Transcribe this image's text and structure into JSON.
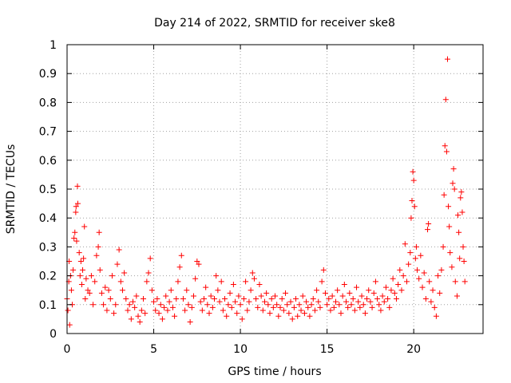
{
  "chart_data": {
    "type": "scatter",
    "title": "Day 214 of 2022, SRMTID for receiver ske8",
    "xlabel": "GPS time / hours",
    "ylabel": "SRMTID / TECUs",
    "xlim": [
      0,
      24
    ],
    "ylim": [
      0,
      1
    ],
    "xticks": [
      0,
      5,
      10,
      15,
      20
    ],
    "yticks": [
      0,
      0.1,
      0.2,
      0.3,
      0.4,
      0.5,
      0.6,
      0.7,
      0.8,
      0.9,
      1
    ],
    "xtick_labels": [
      "0",
      "5",
      "10",
      "15",
      "20"
    ],
    "ytick_labels": [
      "0",
      "0.1",
      "0.2",
      "0.3",
      "0.4",
      "0.5",
      "0.6",
      "0.7",
      "0.8",
      "0.9",
      "1"
    ],
    "grid": true,
    "marker": "plus",
    "color": "#ff0000",
    "series": [
      {
        "name": "SRMTID",
        "points": [
          [
            0.0,
            0.12
          ],
          [
            0.05,
            0.08
          ],
          [
            0.1,
            0.18
          ],
          [
            0.12,
            0.25
          ],
          [
            0.15,
            0.03
          ],
          [
            0.2,
            0.2
          ],
          [
            0.25,
            0.15
          ],
          [
            0.3,
            0.1
          ],
          [
            0.35,
            0.22
          ],
          [
            0.4,
            0.33
          ],
          [
            0.45,
            0.35
          ],
          [
            0.5,
            0.42
          ],
          [
            0.52,
            0.44
          ],
          [
            0.55,
            0.32
          ],
          [
            0.6,
            0.51
          ],
          [
            0.62,
            0.45
          ],
          [
            0.7,
            0.28
          ],
          [
            0.75,
            0.2
          ],
          [
            0.8,
            0.25
          ],
          [
            0.85,
            0.17
          ],
          [
            0.9,
            0.22
          ],
          [
            0.95,
            0.26
          ],
          [
            1.0,
            0.37
          ],
          [
            1.05,
            0.12
          ],
          [
            1.1,
            0.19
          ],
          [
            1.2,
            0.15
          ],
          [
            1.3,
            0.14
          ],
          [
            1.4,
            0.2
          ],
          [
            1.5,
            0.1
          ],
          [
            1.6,
            0.18
          ],
          [
            1.7,
            0.27
          ],
          [
            1.8,
            0.3
          ],
          [
            1.85,
            0.35
          ],
          [
            1.9,
            0.22
          ],
          [
            2.0,
            0.14
          ],
          [
            2.1,
            0.1
          ],
          [
            2.2,
            0.16
          ],
          [
            2.3,
            0.08
          ],
          [
            2.4,
            0.15
          ],
          [
            2.5,
            0.12
          ],
          [
            2.6,
            0.2
          ],
          [
            2.7,
            0.07
          ],
          [
            2.8,
            0.1
          ],
          [
            2.9,
            0.24
          ],
          [
            3.0,
            0.29
          ],
          [
            3.1,
            0.18
          ],
          [
            3.2,
            0.15
          ],
          [
            3.3,
            0.21
          ],
          [
            3.4,
            0.12
          ],
          [
            3.5,
            0.08
          ],
          [
            3.6,
            0.1
          ],
          [
            3.7,
            0.05
          ],
          [
            3.8,
            0.11
          ],
          [
            3.9,
            0.09
          ],
          [
            4.0,
            0.13
          ],
          [
            4.1,
            0.06
          ],
          [
            4.2,
            0.04
          ],
          [
            4.3,
            0.08
          ],
          [
            4.4,
            0.12
          ],
          [
            4.5,
            0.07
          ],
          [
            4.6,
            0.18
          ],
          [
            4.7,
            0.21
          ],
          [
            4.8,
            0.26
          ],
          [
            4.9,
            0.15
          ],
          [
            5.0,
            0.11
          ],
          [
            5.1,
            0.08
          ],
          [
            5.2,
            0.12
          ],
          [
            5.3,
            0.07
          ],
          [
            5.4,
            0.1
          ],
          [
            5.5,
            0.05
          ],
          [
            5.6,
            0.09
          ],
          [
            5.7,
            0.13
          ],
          [
            5.8,
            0.08
          ],
          [
            5.9,
            0.11
          ],
          [
            6.0,
            0.15
          ],
          [
            6.1,
            0.09
          ],
          [
            6.2,
            0.06
          ],
          [
            6.3,
            0.12
          ],
          [
            6.4,
            0.18
          ],
          [
            6.5,
            0.23
          ],
          [
            6.6,
            0.27
          ],
          [
            6.7,
            0.12
          ],
          [
            6.8,
            0.08
          ],
          [
            6.9,
            0.15
          ],
          [
            7.0,
            0.1
          ],
          [
            7.1,
            0.04
          ],
          [
            7.2,
            0.09
          ],
          [
            7.3,
            0.13
          ],
          [
            7.4,
            0.19
          ],
          [
            7.5,
            0.25
          ],
          [
            7.6,
            0.24
          ],
          [
            7.7,
            0.11
          ],
          [
            7.8,
            0.08
          ],
          [
            7.9,
            0.12
          ],
          [
            8.0,
            0.16
          ],
          [
            8.1,
            0.1
          ],
          [
            8.2,
            0.07
          ],
          [
            8.3,
            0.13
          ],
          [
            8.4,
            0.09
          ],
          [
            8.5,
            0.12
          ],
          [
            8.6,
            0.2
          ],
          [
            8.7,
            0.15
          ],
          [
            8.8,
            0.11
          ],
          [
            8.9,
            0.18
          ],
          [
            9.0,
            0.08
          ],
          [
            9.1,
            0.12
          ],
          [
            9.2,
            0.06
          ],
          [
            9.3,
            0.1
          ],
          [
            9.4,
            0.14
          ],
          [
            9.5,
            0.09
          ],
          [
            9.6,
            0.17
          ],
          [
            9.7,
            0.11
          ],
          [
            9.8,
            0.07
          ],
          [
            9.9,
            0.13
          ],
          [
            10.0,
            0.1
          ],
          [
            10.1,
            0.05
          ],
          [
            10.2,
            0.12
          ],
          [
            10.3,
            0.18
          ],
          [
            10.4,
            0.08
          ],
          [
            10.5,
            0.11
          ],
          [
            10.6,
            0.15
          ],
          [
            10.7,
            0.21
          ],
          [
            10.8,
            0.19
          ],
          [
            10.9,
            0.12
          ],
          [
            11.0,
            0.09
          ],
          [
            11.1,
            0.17
          ],
          [
            11.2,
            0.13
          ],
          [
            11.3,
            0.08
          ],
          [
            11.4,
            0.11
          ],
          [
            11.5,
            0.14
          ],
          [
            11.6,
            0.1
          ],
          [
            11.7,
            0.07
          ],
          [
            11.8,
            0.12
          ],
          [
            11.9,
            0.09
          ],
          [
            12.0,
            0.13
          ],
          [
            12.1,
            0.1
          ],
          [
            12.2,
            0.06
          ],
          [
            12.3,
            0.09
          ],
          [
            12.4,
            0.12
          ],
          [
            12.5,
            0.08
          ],
          [
            12.6,
            0.14
          ],
          [
            12.7,
            0.1
          ],
          [
            12.8,
            0.07
          ],
          [
            12.9,
            0.11
          ],
          [
            13.0,
            0.05
          ],
          [
            13.1,
            0.09
          ],
          [
            13.2,
            0.12
          ],
          [
            13.3,
            0.06
          ],
          [
            13.4,
            0.1
          ],
          [
            13.5,
            0.08
          ],
          [
            13.6,
            0.13
          ],
          [
            13.7,
            0.07
          ],
          [
            13.8,
            0.11
          ],
          [
            13.9,
            0.09
          ],
          [
            14.0,
            0.06
          ],
          [
            14.1,
            0.1
          ],
          [
            14.2,
            0.12
          ],
          [
            14.3,
            0.08
          ],
          [
            14.4,
            0.15
          ],
          [
            14.5,
            0.11
          ],
          [
            14.6,
            0.09
          ],
          [
            14.7,
            0.18
          ],
          [
            14.8,
            0.22
          ],
          [
            14.9,
            0.14
          ],
          [
            15.0,
            0.1
          ],
          [
            15.1,
            0.12
          ],
          [
            15.2,
            0.08
          ],
          [
            15.3,
            0.13
          ],
          [
            15.4,
            0.09
          ],
          [
            15.5,
            0.11
          ],
          [
            15.6,
            0.15
          ],
          [
            15.7,
            0.1
          ],
          [
            15.8,
            0.07
          ],
          [
            15.9,
            0.13
          ],
          [
            16.0,
            0.17
          ],
          [
            16.1,
            0.11
          ],
          [
            16.2,
            0.09
          ],
          [
            16.3,
            0.14
          ],
          [
            16.4,
            0.1
          ],
          [
            16.5,
            0.12
          ],
          [
            16.6,
            0.08
          ],
          [
            16.7,
            0.16
          ],
          [
            16.8,
            0.11
          ],
          [
            16.9,
            0.09
          ],
          [
            17.0,
            0.13
          ],
          [
            17.1,
            0.1
          ],
          [
            17.2,
            0.07
          ],
          [
            17.3,
            0.12
          ],
          [
            17.4,
            0.15
          ],
          [
            17.5,
            0.11
          ],
          [
            17.6,
            0.09
          ],
          [
            17.7,
            0.14
          ],
          [
            17.8,
            0.18
          ],
          [
            17.9,
            0.12
          ],
          [
            18.0,
            0.1
          ],
          [
            18.1,
            0.08
          ],
          [
            18.2,
            0.13
          ],
          [
            18.3,
            0.11
          ],
          [
            18.4,
            0.16
          ],
          [
            18.5,
            0.12
          ],
          [
            18.6,
            0.09
          ],
          [
            18.7,
            0.15
          ],
          [
            18.8,
            0.19
          ],
          [
            18.9,
            0.14
          ],
          [
            19.0,
            0.12
          ],
          [
            19.1,
            0.17
          ],
          [
            19.2,
            0.22
          ],
          [
            19.3,
            0.15
          ],
          [
            19.4,
            0.2
          ],
          [
            19.5,
            0.31
          ],
          [
            19.6,
            0.18
          ],
          [
            19.7,
            0.24
          ],
          [
            19.8,
            0.28
          ],
          [
            19.85,
            0.4
          ],
          [
            19.9,
            0.46
          ],
          [
            19.95,
            0.56
          ],
          [
            20.0,
            0.53
          ],
          [
            20.05,
            0.44
          ],
          [
            20.1,
            0.26
          ],
          [
            20.15,
            0.3
          ],
          [
            20.2,
            0.22
          ],
          [
            20.3,
            0.19
          ],
          [
            20.4,
            0.27
          ],
          [
            20.5,
            0.16
          ],
          [
            20.6,
            0.21
          ],
          [
            20.7,
            0.12
          ],
          [
            20.8,
            0.36
          ],
          [
            20.85,
            0.38
          ],
          [
            20.9,
            0.18
          ],
          [
            21.0,
            0.11
          ],
          [
            21.1,
            0.15
          ],
          [
            21.2,
            0.09
          ],
          [
            21.3,
            0.06
          ],
          [
            21.4,
            0.2
          ],
          [
            21.5,
            0.14
          ],
          [
            21.6,
            0.22
          ],
          [
            21.7,
            0.3
          ],
          [
            21.75,
            0.48
          ],
          [
            21.8,
            0.65
          ],
          [
            21.85,
            0.81
          ],
          [
            21.9,
            0.63
          ],
          [
            21.95,
            0.95
          ],
          [
            22.0,
            0.44
          ],
          [
            22.05,
            0.37
          ],
          [
            22.1,
            0.28
          ],
          [
            22.2,
            0.23
          ],
          [
            22.25,
            0.52
          ],
          [
            22.3,
            0.57
          ],
          [
            22.35,
            0.5
          ],
          [
            22.4,
            0.18
          ],
          [
            22.5,
            0.13
          ],
          [
            22.55,
            0.41
          ],
          [
            22.6,
            0.35
          ],
          [
            22.65,
            0.26
          ],
          [
            22.7,
            0.47
          ],
          [
            22.75,
            0.49
          ],
          [
            22.8,
            0.42
          ],
          [
            22.85,
            0.3
          ],
          [
            22.9,
            0.25
          ],
          [
            22.95,
            0.18
          ]
        ]
      }
    ]
  }
}
